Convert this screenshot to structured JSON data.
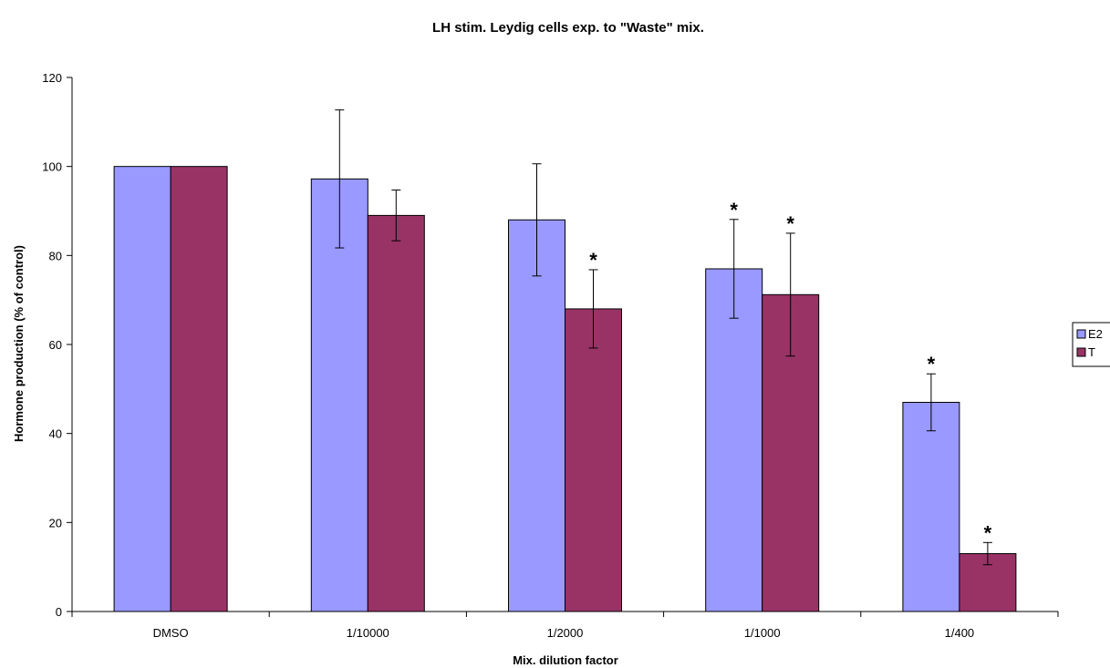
{
  "chart_data": {
    "type": "bar",
    "title": "LH stim. Leydig cells exp. to \"Waste\" mix.",
    "xlabel": "Mix. dilution factor",
    "ylabel": "Hormone production (% of control)",
    "categories": [
      "DMSO",
      "1/10000",
      "1/2000",
      "1/1000",
      "1/400"
    ],
    "ylim": [
      0,
      120
    ],
    "yticks": [
      0,
      20,
      40,
      60,
      80,
      100,
      120
    ],
    "grid": false,
    "legend_position": "right",
    "series": [
      {
        "name": "E2",
        "color": "#9999ff",
        "values": [
          100,
          97.2,
          88,
          77,
          47
        ],
        "error": [
          0,
          15.5,
          12.6,
          11.1,
          6.4
        ],
        "significant": [
          false,
          false,
          false,
          true,
          true
        ]
      },
      {
        "name": "T",
        "color": "#993366",
        "values": [
          100,
          89,
          68,
          71.2,
          13
        ],
        "error": [
          0,
          5.7,
          8.8,
          13.8,
          2.5
        ],
        "significant": [
          false,
          false,
          true,
          true,
          true
        ]
      }
    ],
    "significance_marker": "*"
  }
}
